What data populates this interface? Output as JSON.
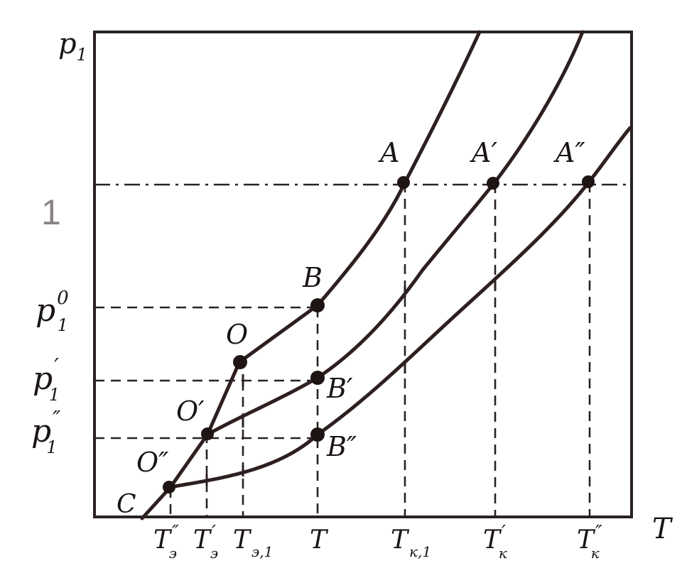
{
  "axes": {
    "y_label": "p",
    "y_label_sub": "1",
    "x_label": "T"
  },
  "y_ticks": {
    "one": "1",
    "p0": {
      "main": "p",
      "sup": "0",
      "sub": "1"
    },
    "p1": {
      "main": "p",
      "sup": "′",
      "sub": "1"
    },
    "p2": {
      "main": "p",
      "sup": "″",
      "sub": "1"
    }
  },
  "x_ticks": {
    "t_e2": {
      "main": "T",
      "sup": "″",
      "sub": "э"
    },
    "t_e1": {
      "main": "T",
      "sup": "′",
      "sub": "э"
    },
    "t_e": {
      "main": "T",
      "sub": "э,1"
    },
    "t": {
      "main": "T"
    },
    "t_k": {
      "main": "T",
      "sub": "к,1"
    },
    "t_k1": {
      "main": "T",
      "sup": "′",
      "sub": "к"
    },
    "t_k2": {
      "main": "T",
      "sup": "″",
      "sub": "к"
    }
  },
  "point_labels": {
    "A": "A",
    "A1": "A′",
    "A2": "A″",
    "B": "B",
    "B1": "B′",
    "B2": "B″",
    "O": "O",
    "O1": "O′",
    "O2": "O″",
    "C": "C"
  },
  "colors": {
    "ink": "#2a2222",
    "background": "#ffffff"
  }
}
